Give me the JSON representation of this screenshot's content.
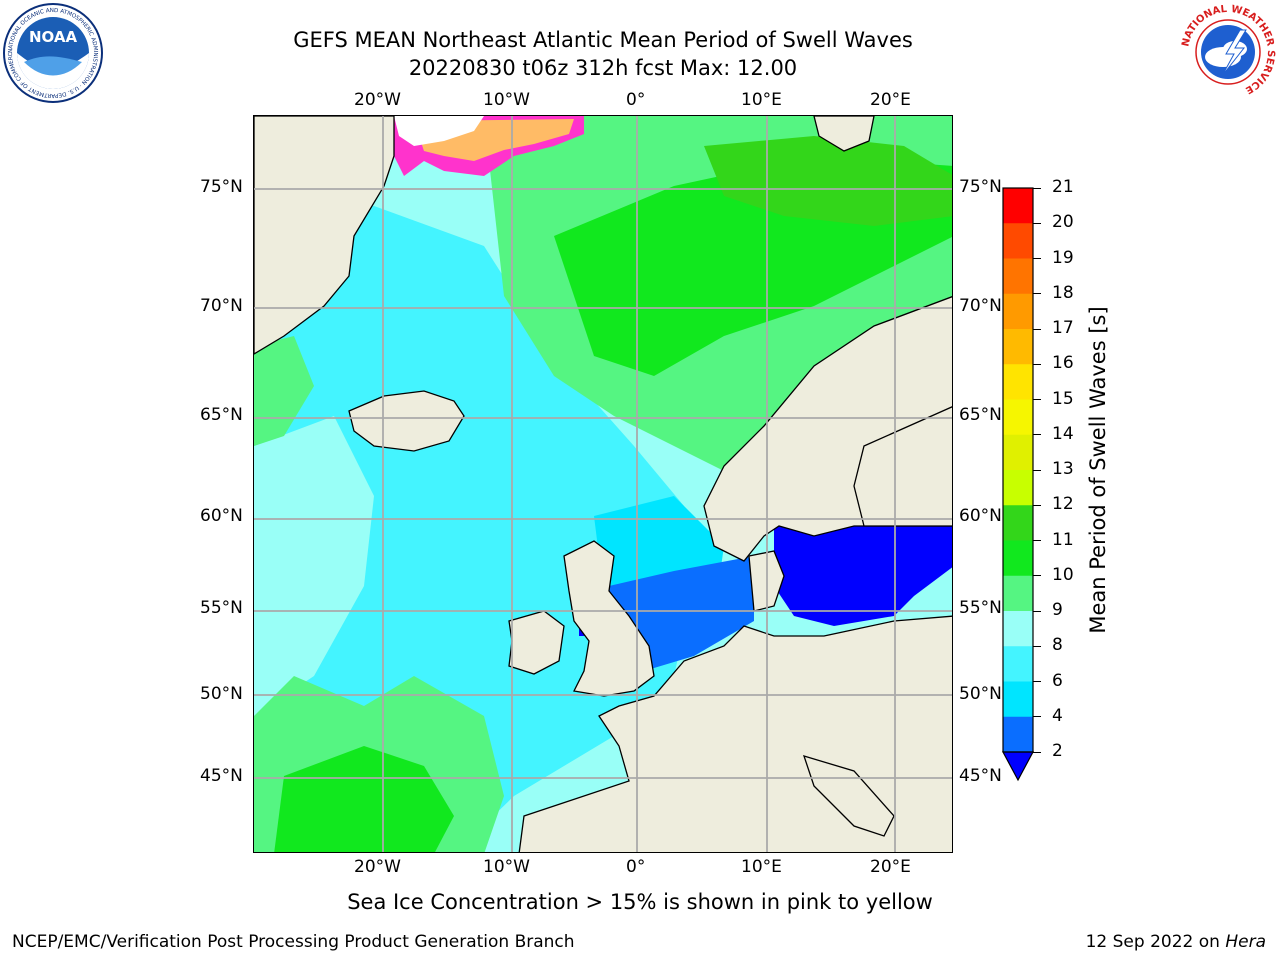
{
  "header": {
    "title_line1": "GEFS MEAN Northeast Atlantic Mean Period of Swell Waves",
    "title_line2": "20220830 t06z 312h fcst   Max: 12.00"
  },
  "logos": {
    "left": {
      "icon": "noaa-logo-icon",
      "text": "NATIONAL OCEANIC AND ATMOSPHERIC ADMINISTRATION · U.S. DEPARTMENT OF COMMERCE",
      "center_text": "NOAA"
    },
    "right": {
      "icon": "national-weather-service-logo-icon",
      "text": "NATIONAL WEATHER SERVICE"
    }
  },
  "map": {
    "longitude_labels": [
      "20°W",
      "10°W",
      "0°",
      "10°E",
      "20°E"
    ],
    "latitude_labels": [
      "75°N",
      "70°N",
      "65°N",
      "60°N",
      "55°N",
      "50°N",
      "45°N"
    ],
    "extent": {
      "lon_min": -29.5,
      "lon_max": 24,
      "lat_min": 41,
      "lat_max": 78
    },
    "field_max": 12.0,
    "colors": {
      "land": "#eeeddd",
      "grid": "#aaaaaa",
      "coast": "#000000",
      "ice_pink": "#ff33cc",
      "ice_orange": "#ffbb66"
    }
  },
  "colorbar": {
    "title": "Mean Period of Swell Waves [s]",
    "ticks": [
      "2",
      "4",
      "6",
      "8",
      "9",
      "10",
      "11",
      "12",
      "13",
      "14",
      "15",
      "16",
      "17",
      "18",
      "19",
      "20",
      "21"
    ],
    "bins": [
      {
        "from": 2,
        "to": 4,
        "color": "#0a6eff"
      },
      {
        "from": 4,
        "to": 6,
        "color": "#00e5ff"
      },
      {
        "from": 6,
        "to": 8,
        "color": "#44f4ff"
      },
      {
        "from": 8,
        "to": 9,
        "color": "#99fff7"
      },
      {
        "from": 9,
        "to": 10,
        "color": "#55f582"
      },
      {
        "from": 10,
        "to": 11,
        "color": "#11e81e"
      },
      {
        "from": 11,
        "to": 12,
        "color": "#33d61a"
      },
      {
        "from": 12,
        "to": 13,
        "color": "#c8ff00"
      },
      {
        "from": 13,
        "to": 14,
        "color": "#e0f000"
      },
      {
        "from": 14,
        "to": 15,
        "color": "#f6f600"
      },
      {
        "from": 15,
        "to": 16,
        "color": "#ffe400"
      },
      {
        "from": 16,
        "to": 17,
        "color": "#ffba00"
      },
      {
        "from": 17,
        "to": 18,
        "color": "#ff9a00"
      },
      {
        "from": 18,
        "to": 19,
        "color": "#ff7400"
      },
      {
        "from": 19,
        "to": 20,
        "color": "#ff4a00"
      },
      {
        "from": 20,
        "to": 21,
        "color": "#ff0000"
      }
    ],
    "under_color": "#0000ff"
  },
  "footer": {
    "note": "Sea Ice Concentration > 15% is shown in pink to yellow",
    "left": "NCEP/EMC/Verification Post Processing Product Generation Branch",
    "right_date": "12 Sep 2022 on ",
    "right_host": "Hera"
  }
}
